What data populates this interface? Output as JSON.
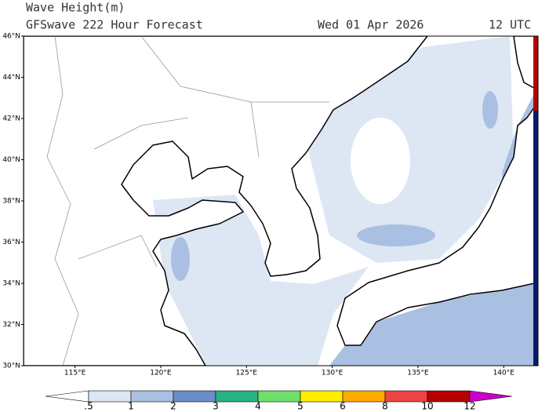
{
  "header": {
    "title": "Wave Height(m)",
    "subtitle": "GFSwave 222 Hour Forecast",
    "date": "Wed 01 Apr 2026",
    "time": "12 UTC"
  },
  "map": {
    "lat_range": [
      30,
      46
    ],
    "lon_range": [
      112,
      142
    ],
    "lat_ticks": [
      {
        "value": 30,
        "label": "30°N"
      },
      {
        "value": 32,
        "label": "32°N"
      },
      {
        "value": 34,
        "label": "34°N"
      },
      {
        "value": 36,
        "label": "36°N"
      },
      {
        "value": 38,
        "label": "38°N"
      },
      {
        "value": 40,
        "label": "40°N"
      },
      {
        "value": 42,
        "label": "42°N"
      },
      {
        "value": 44,
        "label": "44°N"
      },
      {
        "value": 46,
        "label": "46°N"
      }
    ],
    "lon_ticks": [
      {
        "value": 115,
        "label": "115°E"
      },
      {
        "value": 120,
        "label": "120°E"
      },
      {
        "value": 125,
        "label": "125°E"
      },
      {
        "value": 130,
        "label": "130°E"
      },
      {
        "value": 135,
        "label": "135°E"
      },
      {
        "value": 140,
        "label": "140°E"
      }
    ]
  },
  "colorbar": {
    "levels": [
      {
        "value": 0.5,
        "label": ".5"
      },
      1,
      2,
      3,
      4,
      5,
      6,
      8,
      10,
      12
    ],
    "colors": [
      "#ffffff",
      "#dde7f4",
      "#a9c0e2",
      "#6b8dc9",
      "#26b386",
      "#6ee06a",
      "#ffee00",
      "#ffaa00",
      "#ee4444",
      "#b80000",
      "#cc00cc"
    ]
  }
}
